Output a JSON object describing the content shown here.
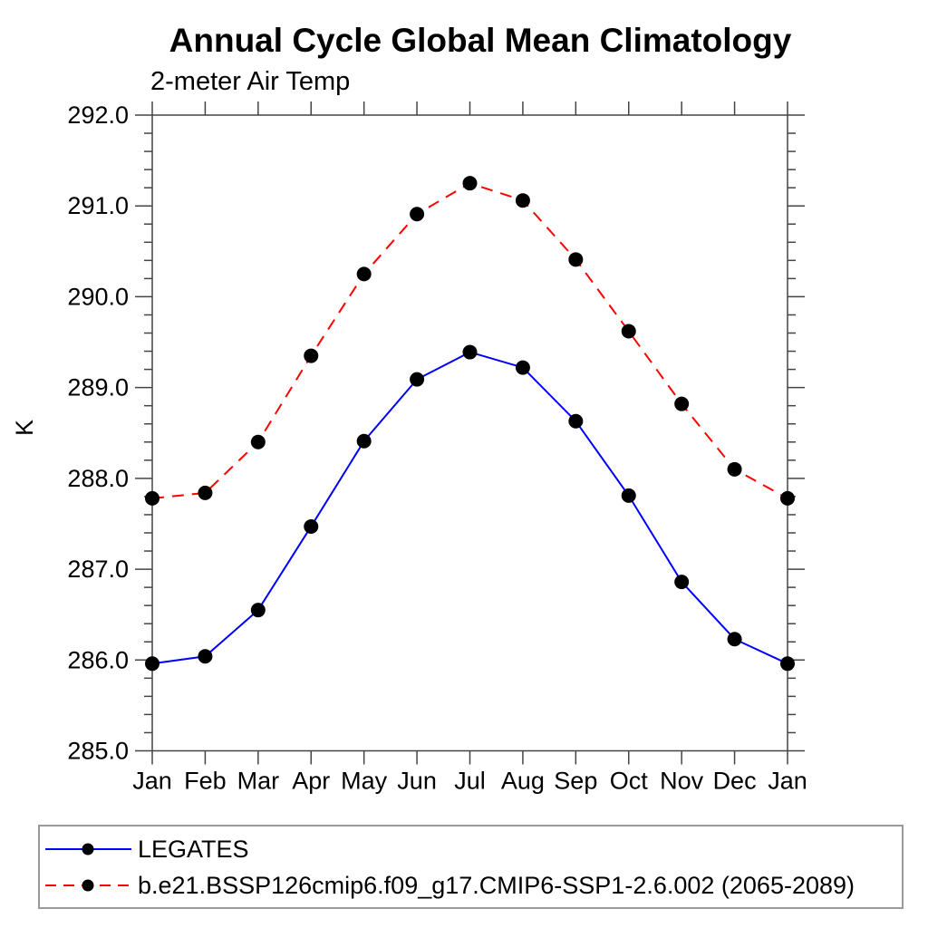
{
  "chart_data": {
    "type": "line",
    "title": "Annual Cycle Global Mean Climatology",
    "subtitle": "2-meter Air Temp",
    "ylabel": "K",
    "xlabel": "",
    "x_tick_labels": [
      "Jan",
      "Feb",
      "Mar",
      "Apr",
      "May",
      "Jun",
      "Jul",
      "Aug",
      "Sep",
      "Oct",
      "Nov",
      "Dec",
      "Jan"
    ],
    "ylim": [
      285.0,
      292.0
    ],
    "y_major_step": 1.0,
    "y_minor_step": 0.2,
    "y_tick_labels": [
      "285.0",
      "286.0",
      "287.0",
      "288.0",
      "289.0",
      "290.0",
      "291.0",
      "292.0"
    ],
    "grid": false,
    "legend_position": "bottom",
    "frame_color": "#444444",
    "marker": "filled-circle",
    "marker_color": "#000000",
    "series": [
      {
        "name": "LEGATES",
        "color": "#0000ff",
        "style": "solid",
        "marker_color": "#000000",
        "values": [
          285.96,
          286.04,
          286.55,
          287.47,
          288.41,
          289.09,
          289.39,
          289.22,
          288.63,
          287.81,
          286.86,
          286.23,
          285.96
        ]
      },
      {
        "name": "b.e21.BSSP126cmip6.f09_g17.CMIP6-SSP1-2.6.002 (2065-2089)",
        "color": "#ff0000",
        "style": "dashed",
        "marker_color": "#000000",
        "values": [
          287.78,
          287.84,
          288.4,
          289.35,
          290.25,
          290.91,
          291.25,
          291.06,
          290.41,
          289.62,
          288.82,
          288.1,
          287.78
        ]
      }
    ]
  }
}
